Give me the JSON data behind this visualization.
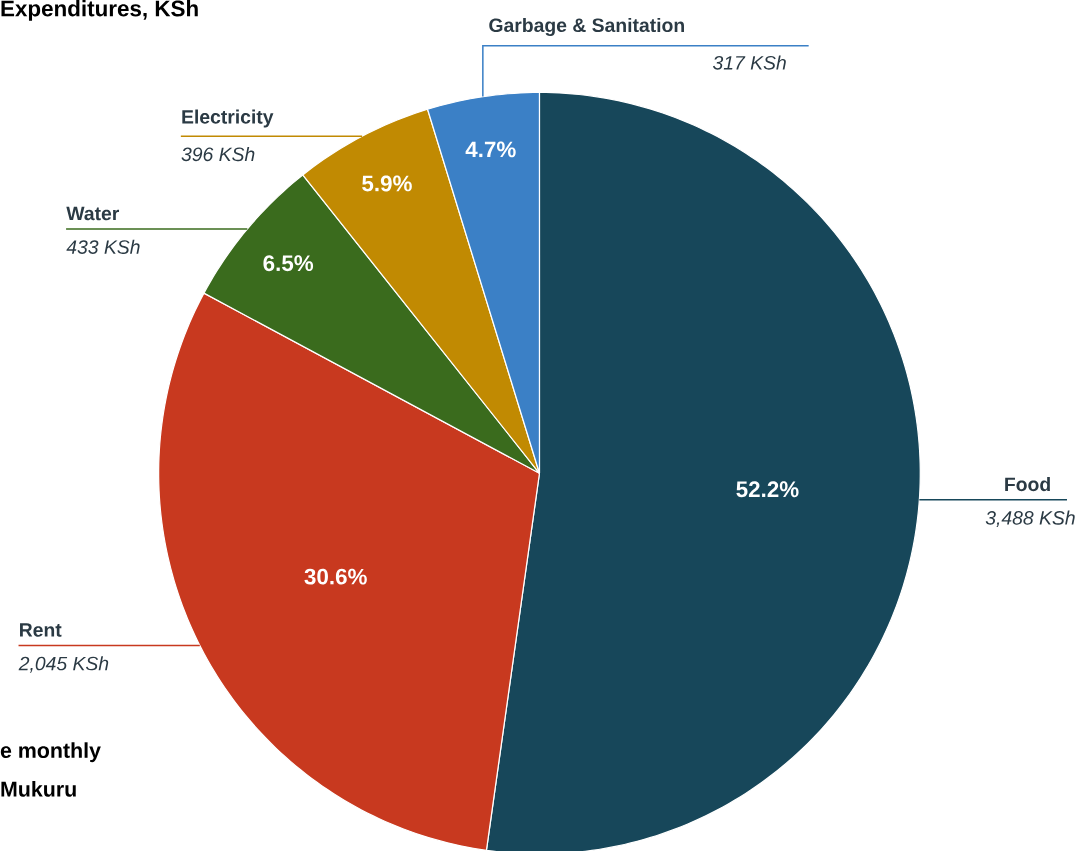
{
  "chart_data": {
    "type": "pie",
    "title": "Expenditures, KSh",
    "categories": [
      "Food",
      "Rent",
      "Water",
      "Electricity",
      "Garbage & Sanitation"
    ],
    "values": [
      3488,
      2045,
      433,
      396,
      317
    ],
    "value_labels": [
      "3,488 KSh",
      "2,045 KSh",
      "433 KSh",
      "396 KSh",
      "317 KSh"
    ],
    "colors": [
      "#17475a",
      "#c8391f",
      "#3a6b1d",
      "#c18a02",
      "#3b80c6"
    ],
    "annotations": [
      {
        "text": "52.2%",
        "x": "Food"
      },
      {
        "text": "30.6%",
        "x": "Rent"
      },
      {
        "text": "6.5%",
        "x": "Water"
      },
      {
        "text": "5.9%",
        "x": "Electricity"
      },
      {
        "text": "4.7%",
        "x": "Garbage & Sanitation"
      },
      "e monthly",
      "Mukuru"
    ]
  }
}
